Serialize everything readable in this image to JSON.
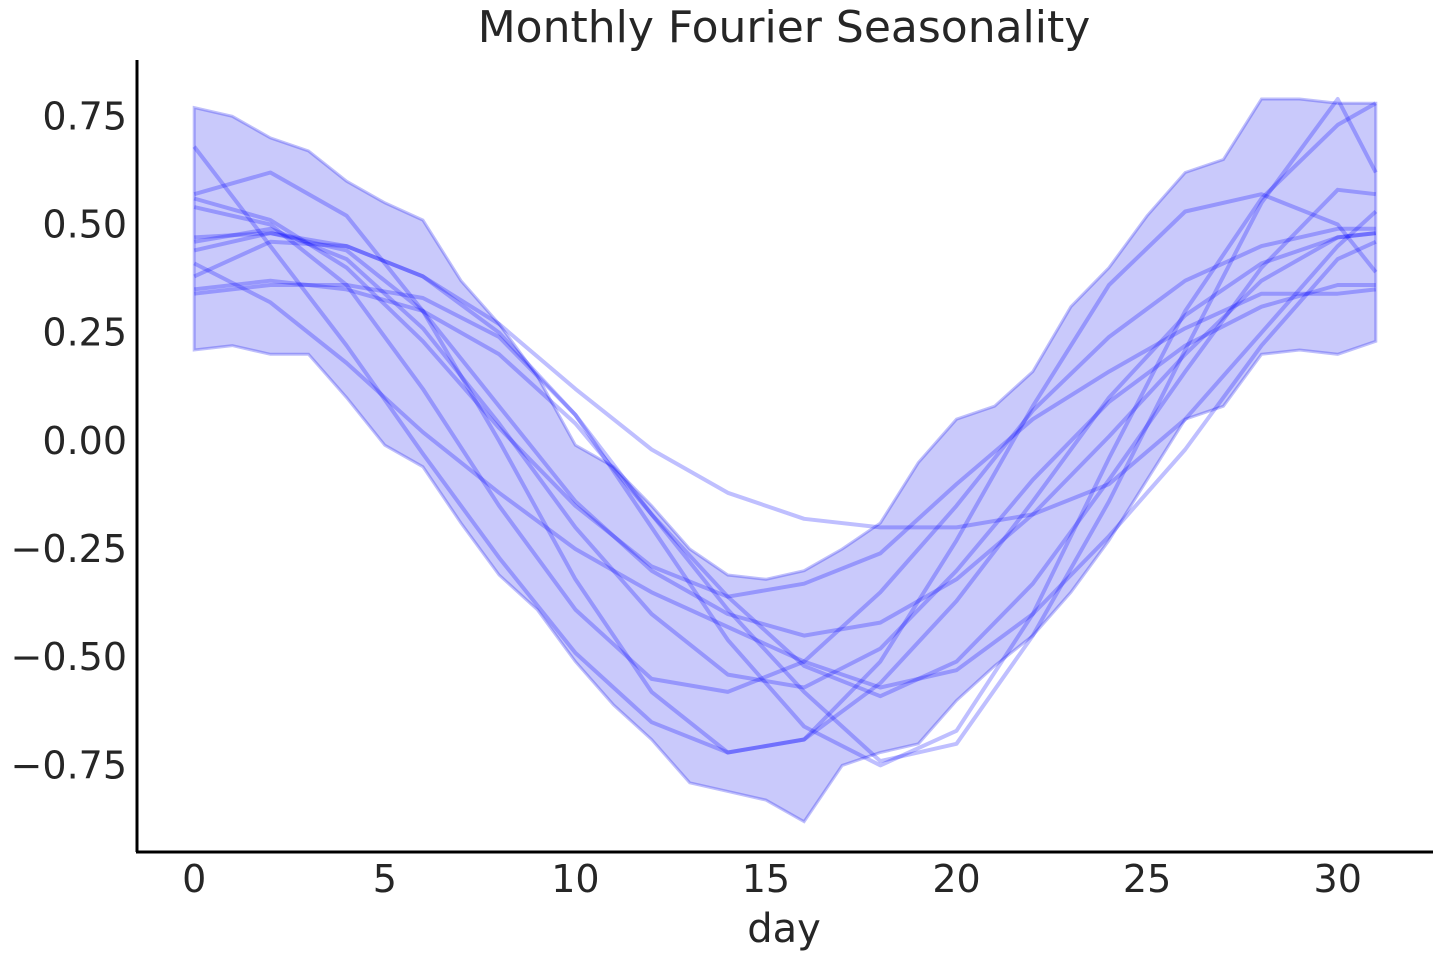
{
  "chart_data": {
    "type": "line",
    "title": "Monthly Fourier Seasonality",
    "xlabel": "day",
    "ylabel": "",
    "xlim": [
      -1.5,
      32.5
    ],
    "ylim": [
      -0.95,
      0.88
    ],
    "x_ticks": [
      0,
      5,
      10,
      15,
      20,
      25,
      30
    ],
    "x_tick_labels": [
      "0",
      "5",
      "10",
      "15",
      "20",
      "25",
      "30"
    ],
    "y_ticks": [
      0.75,
      0.5,
      0.25,
      0.0,
      -0.25,
      -0.5,
      -0.75
    ],
    "y_tick_labels": [
      "0.75",
      "0.50",
      "0.25",
      "0.00",
      "−0.25",
      "−0.50",
      "−0.75"
    ],
    "grid": false,
    "line_color": "#0000ff",
    "band_color": "#0000ee",
    "band": {
      "x": [
        0,
        1,
        2,
        3,
        4,
        5,
        6,
        7,
        8,
        9,
        10,
        11,
        12,
        13,
        14,
        15,
        16,
        17,
        18,
        19,
        20,
        21,
        22,
        23,
        24,
        25,
        26,
        27,
        28,
        29,
        30,
        31
      ],
      "upper": [
        0.77,
        0.75,
        0.7,
        0.67,
        0.6,
        0.55,
        0.51,
        0.37,
        0.27,
        0.15,
        -0.01,
        -0.06,
        -0.15,
        -0.25,
        -0.31,
        -0.32,
        -0.3,
        -0.25,
        -0.19,
        -0.05,
        0.05,
        0.08,
        0.16,
        0.31,
        0.4,
        0.52,
        0.62,
        0.65,
        0.79,
        0.79,
        0.78,
        0.78
      ],
      "lower": [
        0.21,
        0.22,
        0.2,
        0.2,
        0.1,
        -0.01,
        -0.06,
        -0.19,
        -0.31,
        -0.39,
        -0.51,
        -0.61,
        -0.69,
        -0.79,
        -0.81,
        -0.83,
        -0.88,
        -0.75,
        -0.72,
        -0.7,
        -0.6,
        -0.52,
        -0.45,
        -0.35,
        -0.23,
        -0.09,
        0.05,
        0.08,
        0.2,
        0.21,
        0.2,
        0.23
      ]
    },
    "series": [
      {
        "x": [
          0,
          2,
          4,
          6,
          8,
          10,
          12,
          14,
          16,
          18,
          20,
          22,
          24,
          26,
          28,
          30,
          31
        ],
        "values": [
          0.68,
          0.45,
          0.22,
          -0.03,
          -0.27,
          -0.49,
          -0.65,
          -0.72,
          -0.69,
          -0.56,
          -0.37,
          -0.14,
          0.1,
          0.29,
          0.41,
          0.47,
          0.48
        ]
      },
      {
        "x": [
          0,
          2,
          4,
          6,
          8,
          10,
          12,
          14,
          16,
          18,
          20,
          22,
          24,
          26,
          28,
          30,
          31
        ],
        "values": [
          0.57,
          0.62,
          0.52,
          0.3,
          0.0,
          -0.32,
          -0.58,
          -0.72,
          -0.69,
          -0.51,
          -0.23,
          0.08,
          0.36,
          0.53,
          0.57,
          0.5,
          0.39
        ]
      },
      {
        "x": [
          0,
          2,
          4,
          6,
          8,
          10,
          12,
          14,
          16,
          18,
          20,
          22,
          24,
          26,
          28,
          30,
          31
        ],
        "values": [
          0.35,
          0.37,
          0.35,
          0.3,
          0.2,
          0.04,
          -0.17,
          -0.39,
          -0.58,
          -0.74,
          -0.7,
          -0.45,
          -0.14,
          0.21,
          0.55,
          0.79,
          0.62
        ]
      },
      {
        "x": [
          0,
          2,
          4,
          6,
          8,
          10,
          12,
          14,
          16,
          18,
          20,
          22,
          24,
          26,
          28,
          30,
          31
        ],
        "values": [
          0.34,
          0.36,
          0.36,
          0.33,
          0.24,
          0.06,
          -0.2,
          -0.46,
          -0.66,
          -0.75,
          -0.67,
          -0.4,
          -0.04,
          0.3,
          0.56,
          0.73,
          0.78
        ]
      },
      {
        "x": [
          0,
          2,
          4,
          6,
          8,
          10,
          12,
          14,
          16,
          18,
          20,
          22,
          24,
          26,
          28,
          30,
          31
        ],
        "values": [
          0.47,
          0.48,
          0.45,
          0.38,
          0.27,
          0.12,
          -0.02,
          -0.12,
          -0.18,
          -0.2,
          -0.2,
          -0.17,
          -0.1,
          0.05,
          0.25,
          0.45,
          0.53
        ]
      },
      {
        "x": [
          0,
          2,
          4,
          6,
          8,
          10,
          12,
          14,
          16,
          18,
          20,
          22,
          24,
          26,
          28,
          30,
          31
        ],
        "values": [
          0.44,
          0.48,
          0.44,
          0.3,
          0.08,
          -0.14,
          -0.3,
          -0.4,
          -0.45,
          -0.42,
          -0.32,
          -0.17,
          0.01,
          0.2,
          0.37,
          0.47,
          0.48
        ]
      },
      {
        "x": [
          0,
          2,
          4,
          6,
          8,
          10,
          12,
          14,
          16,
          18,
          20,
          22,
          24,
          26,
          28,
          30,
          31
        ],
        "values": [
          0.56,
          0.51,
          0.4,
          0.23,
          0.03,
          -0.15,
          -0.29,
          -0.36,
          -0.33,
          -0.26,
          -0.1,
          0.05,
          0.16,
          0.26,
          0.34,
          0.34,
          0.35
        ]
      },
      {
        "x": [
          0,
          2,
          4,
          6,
          8,
          10,
          12,
          14,
          16,
          18,
          20,
          22,
          24,
          26,
          28,
          30,
          31
        ],
        "values": [
          0.41,
          0.32,
          0.18,
          0.02,
          -0.12,
          -0.25,
          -0.35,
          -0.43,
          -0.51,
          -0.57,
          -0.53,
          -0.4,
          -0.22,
          -0.02,
          0.22,
          0.42,
          0.46
        ]
      },
      {
        "x": [
          0,
          2,
          4,
          6,
          8,
          10,
          12,
          14,
          16,
          18,
          20,
          22,
          24,
          26,
          28,
          30,
          31
        ],
        "values": [
          0.54,
          0.5,
          0.36,
          0.12,
          -0.15,
          -0.39,
          -0.55,
          -0.58,
          -0.51,
          -0.35,
          -0.15,
          0.07,
          0.24,
          0.37,
          0.45,
          0.49,
          0.49
        ]
      },
      {
        "x": [
          0,
          2,
          4,
          6,
          8,
          10,
          12,
          14,
          16,
          18,
          20,
          22,
          24,
          26,
          28,
          30,
          31
        ],
        "values": [
          0.46,
          0.49,
          0.42,
          0.26,
          0.04,
          -0.2,
          -0.4,
          -0.54,
          -0.57,
          -0.48,
          -0.3,
          -0.09,
          0.09,
          0.22,
          0.31,
          0.36,
          0.36
        ]
      },
      {
        "x": [
          0,
          2,
          4,
          6,
          8,
          10,
          12,
          14,
          16,
          18,
          20,
          22,
          24,
          26,
          28,
          30,
          31
        ],
        "values": [
          0.38,
          0.46,
          0.45,
          0.38,
          0.25,
          0.06,
          -0.17,
          -0.36,
          -0.52,
          -0.59,
          -0.51,
          -0.33,
          -0.09,
          0.16,
          0.4,
          0.58,
          0.57
        ]
      }
    ]
  }
}
